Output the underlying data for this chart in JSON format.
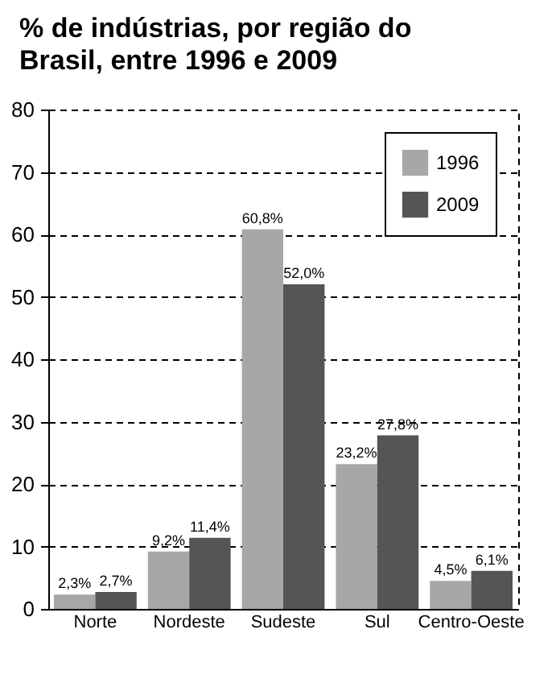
{
  "chart_data": {
    "type": "bar",
    "title": "% de indústrias, por região do Brasil, entre 1996 e 2009",
    "categories": [
      "Norte",
      "Nordeste",
      "Sudeste",
      "Sul",
      "Centro-Oeste"
    ],
    "series": [
      {
        "name": "1996",
        "color": "#a7a7a9",
        "values": [
          2.3,
          9.2,
          60.8,
          23.2,
          4.5
        ],
        "value_labels": [
          "2,3%",
          "9,2%",
          "60,8%",
          "23,2%",
          "4,5%"
        ]
      },
      {
        "name": "2009",
        "color": "#555557",
        "values": [
          2.7,
          11.4,
          52.0,
          27.8,
          6.1
        ],
        "value_labels": [
          "2,7%",
          "11,4%",
          "52,0%",
          "27,8%",
          "6,1%"
        ]
      }
    ],
    "ylim": [
      0,
      80
    ],
    "yticks": [
      0,
      10,
      20,
      30,
      40,
      50,
      60,
      70,
      80
    ],
    "grid": "y",
    "legend": "top right"
  }
}
